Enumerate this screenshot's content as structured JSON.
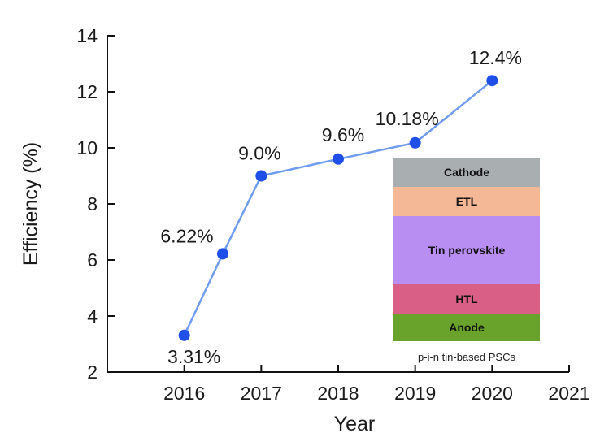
{
  "chart_data": {
    "type": "line",
    "title": "",
    "xlabel": "Year",
    "ylabel": "Efficiency (%)",
    "xlim": [
      2015,
      2021
    ],
    "ylim": [
      2,
      14
    ],
    "x_ticks": [
      2016,
      2017,
      2018,
      2019,
      2020,
      2021
    ],
    "x_tick_labels": [
      "2016",
      "2017",
      "2018",
      "2019",
      "2020",
      "2021"
    ],
    "y_ticks": [
      2,
      4,
      6,
      8,
      10,
      12,
      14
    ],
    "y_tick_labels": [
      "2",
      "4",
      "6",
      "8",
      "10",
      "12",
      "14"
    ],
    "grid": false,
    "series": [
      {
        "x": [
          2016,
          2016.5,
          2017,
          2018,
          2019,
          2020
        ],
        "y": [
          3.31,
          6.22,
          9.0,
          9.6,
          10.18,
          12.4
        ],
        "labels": [
          "3.31%",
          "6.22%",
          "9.0%",
          "9.6%",
          "10.18%",
          "12.4%"
        ],
        "color": "#6f9cf0",
        "marker_color": "#1f4fe8"
      }
    ]
  },
  "inset": {
    "layers": [
      {
        "label": "Cathode",
        "color": "#a9aeb0"
      },
      {
        "label": "ETL",
        "color": "#f5b896"
      },
      {
        "label": "Tin perovskite",
        "color": "#b98ef2"
      },
      {
        "label": "HTL",
        "color": "#d95f86"
      },
      {
        "label": "Anode",
        "color": "#6aa32b"
      }
    ],
    "caption": "p-i-n tin-based PSCs"
  }
}
